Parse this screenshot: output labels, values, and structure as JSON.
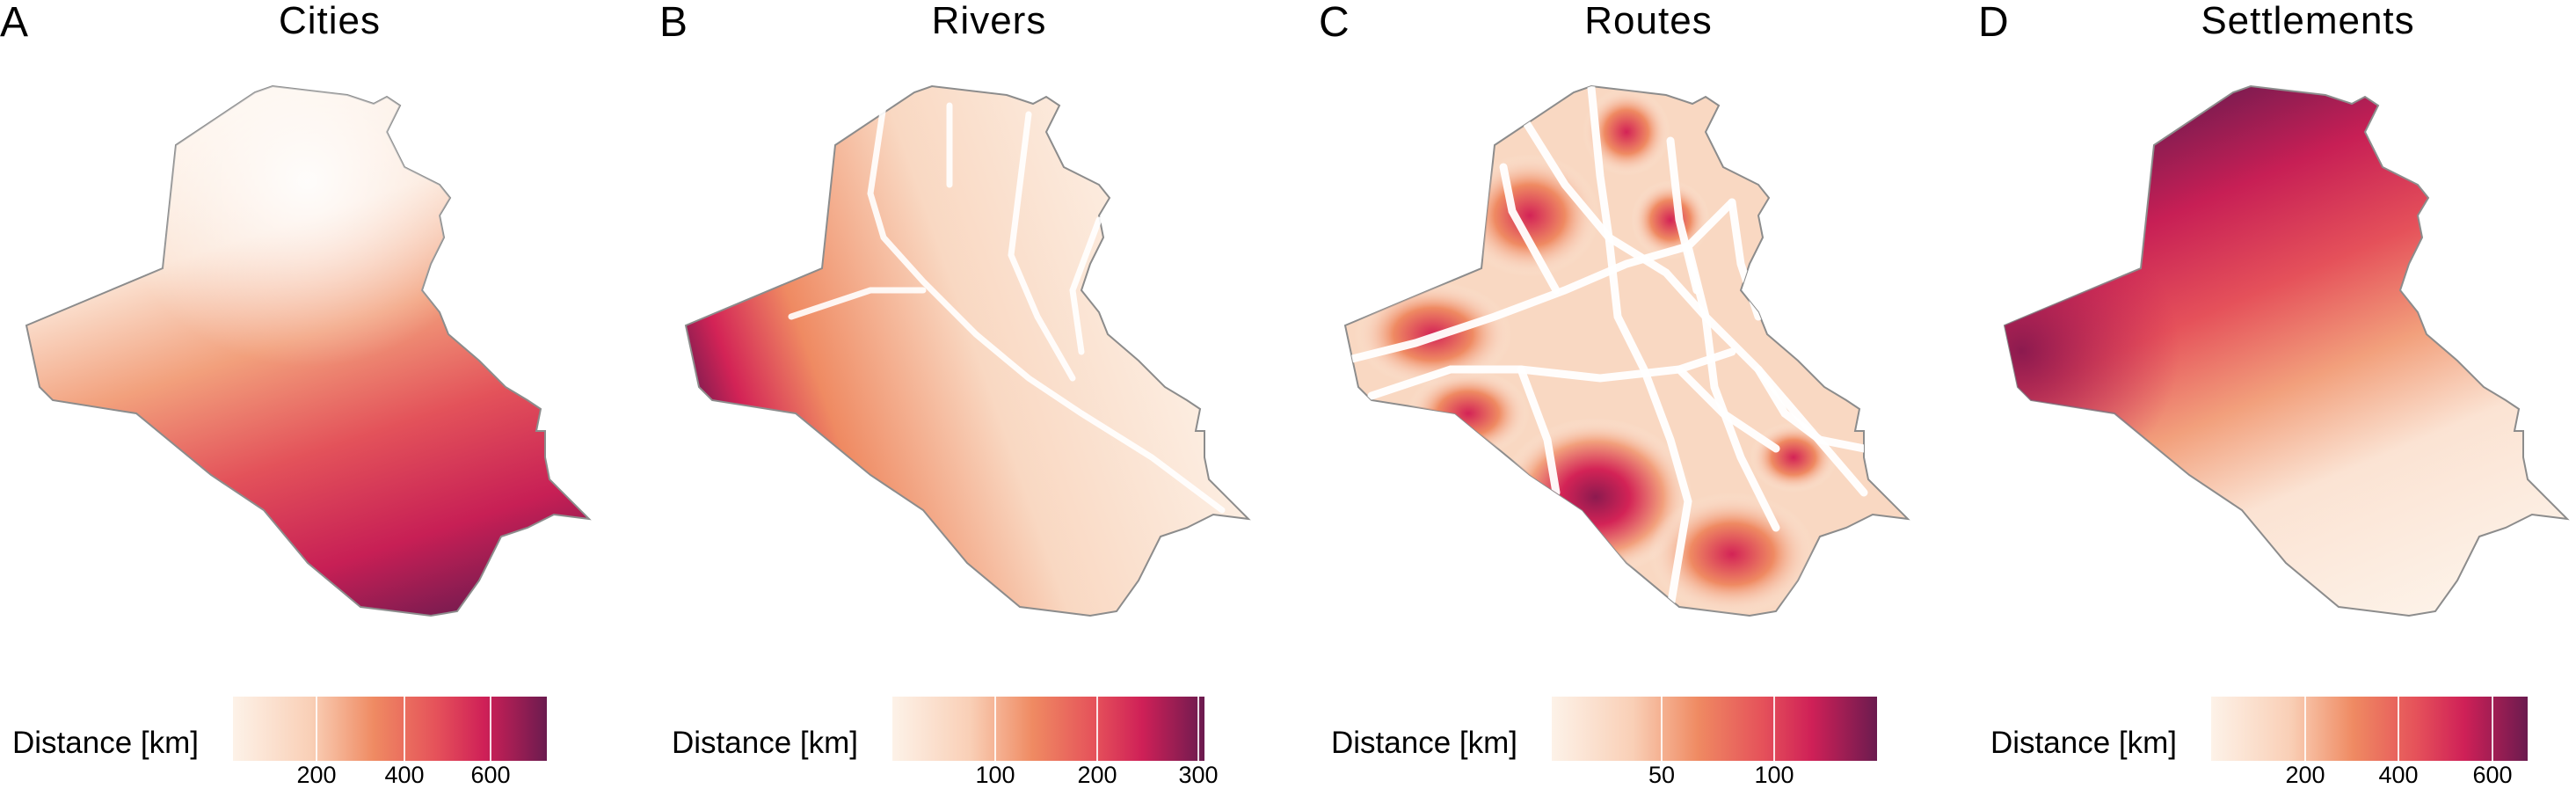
{
  "panels": [
    {
      "letter": "A",
      "title": "Cities",
      "legend": {
        "label": "Distance [km]",
        "range_km": [
          0,
          710
        ],
        "ticks": [
          "200",
          "400",
          "600"
        ]
      },
      "gradient": {
        "direction": "south",
        "high_region": "southeast tip"
      }
    },
    {
      "letter": "B",
      "title": "Rivers",
      "legend": {
        "label": "Distance [km]",
        "range_km": [
          0,
          310
        ],
        "ticks": [
          "100",
          "200",
          "300"
        ]
      },
      "gradient": {
        "direction": "west",
        "high_region": "western desert"
      }
    },
    {
      "letter": "C",
      "title": "Routes",
      "legend": {
        "label": "Distance [km]",
        "range_km": [
          0,
          150
        ],
        "ticks": [
          "50",
          "100"
        ]
      },
      "gradient": {
        "direction": "patchy",
        "high_region": "scattered pockets between roads"
      }
    },
    {
      "letter": "D",
      "title": "Settlements",
      "legend": {
        "label": "Distance [km]",
        "range_km": [
          0,
          680
        ],
        "ticks": [
          "200",
          "400",
          "600"
        ]
      },
      "gradient": {
        "direction": "north-west",
        "high_region": "northern border and far west"
      }
    }
  ],
  "colors": {
    "low": "#fdf2e8",
    "mid_low": "#f6b08f",
    "mid": "#ee7a52",
    "mid_high": "#d32356",
    "high": "#6b1b4f",
    "border": "#8c8c8c"
  }
}
